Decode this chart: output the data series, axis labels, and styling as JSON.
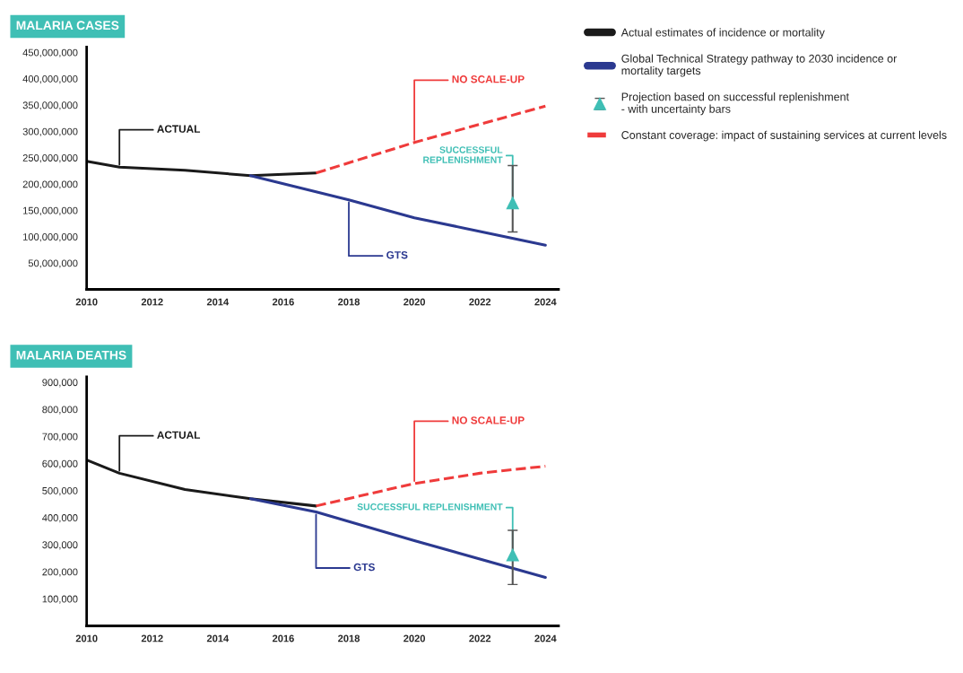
{
  "chart_data": [
    {
      "type": "line",
      "title": "MALARIA CASES",
      "xlim": [
        2010,
        2024.4
      ],
      "xticks": [
        2010,
        2012,
        2014,
        2016,
        2018,
        2020,
        2022,
        2024
      ],
      "ylim": [
        0,
        460000000
      ],
      "yticks": [
        {
          "value": 50000000,
          "label": "50,000,000"
        },
        {
          "value": 100000000,
          "label": "100,000,000"
        },
        {
          "value": 150000000,
          "label": "150,000,000"
        },
        {
          "value": 200000000,
          "label": "200,000,000"
        },
        {
          "value": 250000000,
          "label": "250,000,000"
        },
        {
          "value": 300000000,
          "label": "300,000,000"
        },
        {
          "value": 350000000,
          "label": "350,000,000"
        },
        {
          "value": 400000000,
          "label": "400,000,000"
        },
        {
          "value": 450000000,
          "label": "450,000,000"
        }
      ],
      "grid": false,
      "legend": "right",
      "series": [
        {
          "name": "Actual estimates of incidence or mortality",
          "color": "#1a1a1a",
          "line_style": "solid",
          "x": [
            2010,
            2011,
            2013,
            2015,
            2017
          ],
          "values": [
            243000000,
            232000000,
            226000000,
            216000000,
            221000000
          ]
        },
        {
          "name": "Global Technical Strategy pathway to 2030 incidence or\nmortality targets",
          "color": "#2b3990",
          "line_style": "solid",
          "x": [
            2015,
            2018,
            2020,
            2024
          ],
          "values": [
            216000000,
            170000000,
            136000000,
            84000000
          ]
        },
        {
          "name": "Projection based on successful replenishment\n- with uncertainty bars",
          "type": "scatter",
          "color": "#3fbfb5",
          "marker": "triangle",
          "x": [
            2023
          ],
          "values": [
            164000000
          ],
          "errors": [
            [
              109000000,
              235000000
            ]
          ]
        },
        {
          "name": "Constant coverage: impact of sustaining services at current levels",
          "color": "#ef3b3b",
          "line_style": "dashed",
          "x": [
            2017,
            2020,
            2024
          ],
          "values": [
            221000000,
            279000000,
            348000000
          ]
        }
      ],
      "annotations": [
        {
          "text": "ACTUAL",
          "x": 2011,
          "y": 232000000
        },
        {
          "text": "GTS",
          "x": 2018,
          "y": 170000000
        },
        {
          "text": "SUCCESSFUL\nREPLENISHMENT",
          "x": 2023,
          "y": 164000000
        },
        {
          "text": "NO SCALE-UP",
          "x": 2020,
          "y": 279000000
        }
      ]
    },
    {
      "type": "line",
      "title": "MALARIA DEATHS",
      "xlim": [
        2010,
        2024.4
      ],
      "xticks": [
        2010,
        2012,
        2014,
        2016,
        2018,
        2020,
        2022,
        2024
      ],
      "ylim": [
        0,
        920000
      ],
      "yticks": [
        {
          "value": 100000,
          "label": "100,000"
        },
        {
          "value": 200000,
          "label": "200,000"
        },
        {
          "value": 300000,
          "label": "300,000"
        },
        {
          "value": 400000,
          "label": "400,000"
        },
        {
          "value": 500000,
          "label": "500,000"
        },
        {
          "value": 600000,
          "label": "600,000"
        },
        {
          "value": 700000,
          "label": "700,000"
        },
        {
          "value": 800000,
          "label": "800,000"
        },
        {
          "value": 900000,
          "label": "900,000"
        }
      ],
      "grid": false,
      "series": [
        {
          "color": "#1a1a1a",
          "line_style": "solid",
          "x": [
            2010,
            2011,
            2013,
            2015,
            2017
          ],
          "values": [
            613000,
            564000,
            504000,
            470000,
            443000
          ]
        },
        {
          "color": "#2b3990",
          "line_style": "solid",
          "x": [
            2015,
            2017,
            2020,
            2024
          ],
          "values": [
            470000,
            421000,
            315000,
            179000
          ]
        },
        {
          "type": "scatter",
          "color": "#3fbfb5",
          "marker": "triangle",
          "x": [
            2023
          ],
          "values": [
            262000
          ],
          "errors": [
            [
              153000,
              353000
            ]
          ]
        },
        {
          "color": "#ef3b3b",
          "line_style": "dashed",
          "x": [
            2017,
            2020,
            2022,
            2024
          ],
          "values": [
            443000,
            526000,
            564000,
            590000
          ]
        }
      ],
      "annotations": [
        {
          "text": "ACTUAL",
          "x": 2011,
          "y": 564000
        },
        {
          "text": "GTS",
          "x": 2017,
          "y": 421000
        },
        {
          "text": "SUCCESSFUL REPLENISHMENT",
          "x": 2023,
          "y": 262000
        },
        {
          "text": "NO SCALE-UP",
          "x": 2020,
          "y": 526000
        }
      ]
    }
  ]
}
